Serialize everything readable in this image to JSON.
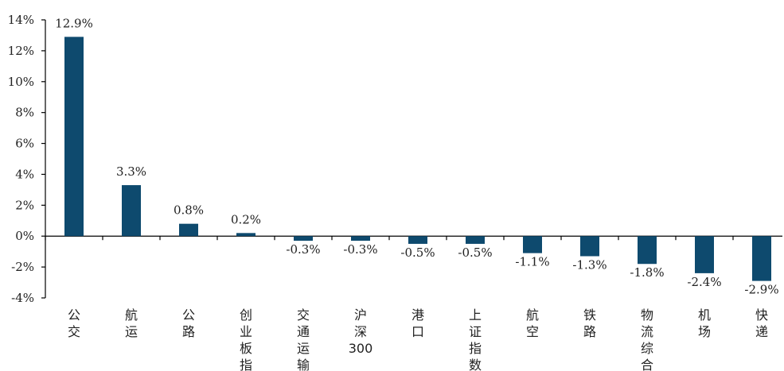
{
  "chart_data": {
    "type": "bar",
    "categories": [
      "公交",
      "航运",
      "公路",
      "创业板指",
      "交通运输",
      "沪深300",
      "港口",
      "上证指数",
      "航空",
      "铁路",
      "物流综合",
      "机场",
      "快递"
    ],
    "values": [
      12.9,
      3.3,
      0.8,
      0.2,
      -0.3,
      -0.3,
      -0.5,
      -0.5,
      -1.1,
      -1.3,
      -1.8,
      -2.4,
      -2.9
    ],
    "data_labels": [
      "12.9%",
      "3.3%",
      "0.8%",
      "0.2%",
      "-0.3%",
      "-0.3%",
      "-0.5%",
      "-0.5%",
      "-1.1%",
      "-1.3%",
      "-1.8%",
      "-2.4%",
      "-2.9%"
    ],
    "yticks": [
      14,
      12,
      10,
      8,
      6,
      4,
      2,
      0,
      -2,
      -4
    ],
    "ytick_labels": [
      "14%",
      "12%",
      "10%",
      "8%",
      "6%",
      "4%",
      "2%",
      "0%",
      "-2%",
      "-4%"
    ],
    "ylim": [
      -4,
      14
    ],
    "grid": false,
    "title": "",
    "xlabel": "",
    "ylabel": "",
    "bar_color": "#0E4A6E"
  }
}
